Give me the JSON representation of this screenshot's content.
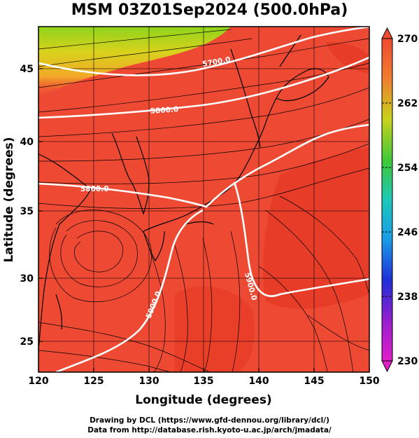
{
  "title": "MSM 03Z01Sep2024 (500.0hPa)",
  "axes": {
    "xlabel": "Longitude (degrees)",
    "ylabel": "Latitude  (degrees)",
    "xticks": [
      "120",
      "125",
      "130",
      "135",
      "140",
      "145",
      "150"
    ],
    "yticks": [
      "25",
      "30",
      "35",
      "40",
      "45"
    ],
    "xlim": [
      120,
      150
    ],
    "ylim": [
      22.4,
      47.6
    ]
  },
  "colorbar": {
    "ticks": [
      "270",
      "262",
      "254",
      "246",
      "238",
      "230"
    ],
    "range": [
      230,
      270
    ]
  },
  "contours": [
    {
      "label": "5700.0"
    },
    {
      "label": "5800.0"
    },
    {
      "label": "5800.0"
    },
    {
      "label": "5900.0"
    },
    {
      "label": "5900.0"
    }
  ],
  "colors": {
    "field": "#ee4a33",
    "warm_core": "#e3341f",
    "cold": "#7ed01d",
    "contour": "#ffffff",
    "streamline": "#000000"
  },
  "credits": {
    "line1": "Drawing by DCL (https://www.gfd-dennou.org/library/dcl/)",
    "line2": "Data from http://database.rish.kyoto-u.ac.jp/arch/jmadata/"
  }
}
